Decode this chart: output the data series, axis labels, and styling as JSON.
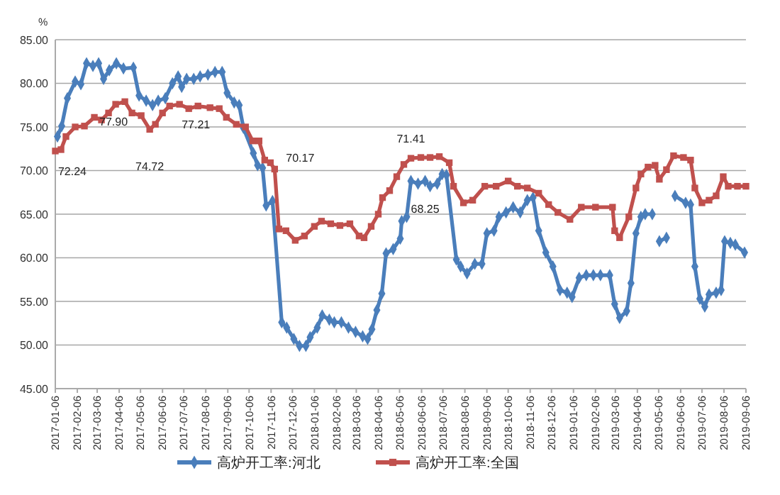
{
  "chart_data": {
    "type": "line",
    "ylabel": "%",
    "legend": "bottom",
    "grid": "y",
    "line_style": "solid",
    "ylim": [
      45,
      85
    ],
    "yticks": [
      {
        "value": 45,
        "label": "45.00"
      },
      {
        "value": 50,
        "label": "50.00"
      },
      {
        "value": 55,
        "label": "55.00"
      },
      {
        "value": 60,
        "label": "60.00"
      },
      {
        "value": 65,
        "label": "65.00"
      },
      {
        "value": 70,
        "label": "70.00"
      },
      {
        "value": 75,
        "label": "75.00"
      },
      {
        "value": 80,
        "label": "80.00"
      },
      {
        "value": 85,
        "label": "85.00"
      }
    ],
    "xlim": [
      "2017-01-06",
      "2019-09-06"
    ],
    "xticks": [
      "2017-01-06",
      "2017-02-06",
      "2017-03-06",
      "2017-04-06",
      "2017-05-06",
      "2017-06-06",
      "2017-07-06",
      "2017-08-06",
      "2017-09-06",
      "2017-10-06",
      "2017-11-06",
      "2017-12-06",
      "2018-01-06",
      "2018-02-06",
      "2018-03-06",
      "2018-04-06",
      "2018-05-06",
      "2018-06-06",
      "2018-07-06",
      "2018-08-06",
      "2018-09-06",
      "2018-10-06",
      "2018-11-06",
      "2018-12-06",
      "2019-01-06",
      "2019-02-06",
      "2019-03-06",
      "2019-04-06",
      "2019-05-06",
      "2019-06-06",
      "2019-07-06",
      "2019-08-06",
      "2019-09-06"
    ],
    "series": [
      {
        "name": "高炉开工率:河北",
        "color": "#4a7ebb",
        "marker": "diamond",
        "x": [
          "2017-01-09",
          "2017-01-15",
          "2017-01-23",
          "2017-02-03",
          "2017-02-11",
          "2017-02-19",
          "2017-02-28",
          "2017-03-08",
          "2017-03-15",
          "2017-03-23",
          "2017-04-02",
          "2017-04-12",
          "2017-04-26",
          "2017-05-04",
          "2017-05-14",
          "2017-05-23",
          "2017-05-31",
          "2017-06-10",
          "2017-06-20",
          "2017-06-28",
          "2017-07-03",
          "2017-07-10",
          "2017-07-20",
          "2017-07-29",
          "2017-08-09",
          "2017-08-19",
          "2017-08-29",
          "2017-09-05",
          "2017-09-15",
          "2017-09-22",
          "2017-09-28",
          "2017-10-12",
          "2017-10-18",
          "2017-10-25",
          "2017-10-30",
          "2017-11-08",
          "2017-11-21",
          "2017-11-28",
          "2017-12-08",
          "2017-12-16",
          "2017-12-25",
          "2017-12-31",
          "2018-01-10",
          "2018-01-17",
          "2018-01-27",
          "2018-02-03",
          "2018-02-13",
          "2018-02-23",
          "2018-03-05",
          "2018-03-15",
          "2018-03-22",
          "2018-03-28",
          "2018-04-04",
          "2018-04-11",
          "2018-04-17",
          "2018-04-27",
          "2018-05-07",
          "2018-05-09",
          "2018-05-16",
          "2018-05-22",
          "2018-06-01",
          "2018-06-11",
          "2018-06-18",
          "2018-06-28",
          "2018-07-05",
          "2018-07-11",
          "2018-07-25",
          "2018-07-31",
          "2018-08-09",
          "2018-08-20",
          "2018-08-30",
          "2018-09-06",
          "2018-09-16",
          "2018-09-23",
          "2018-10-03",
          "2018-10-13",
          "2018-10-23",
          "2018-11-02",
          "2018-11-10",
          "2018-11-18",
          "2018-11-28",
          "2018-12-08",
          "2018-12-18",
          "2018-12-28",
          "2019-01-04",
          "2019-01-14",
          "2019-01-24",
          "2019-02-03",
          "2019-02-13",
          "2019-02-26",
          "2019-03-05",
          "2019-03-12",
          "2019-03-22",
          "2019-03-28",
          "2019-04-04",
          "2019-04-11",
          "2019-04-17",
          "2019-04-27",
          "2019-05-02",
          "2019-05-07",
          "2019-05-17",
          "2019-05-23",
          "2019-05-29",
          "2019-06-13",
          "2019-06-20",
          "2019-06-26",
          "2019-07-03",
          "2019-07-10",
          "2019-07-16",
          "2019-07-26",
          "2019-08-02",
          "2019-08-07",
          "2019-08-15",
          "2019-08-22",
          "2019-09-04"
        ],
        "values": [
          73.9,
          75.1,
          78.3,
          80.2,
          79.9,
          82.3,
          82.0,
          82.3,
          80.5,
          81.5,
          82.3,
          81.7,
          81.8,
          78.6,
          78.0,
          77.5,
          78.0,
          78.3,
          80.0,
          80.8,
          79.6,
          80.5,
          80.5,
          80.8,
          81.0,
          81.3,
          81.3,
          78.9,
          77.8,
          77.5,
          74.9,
          72.0,
          70.6,
          70.3,
          66.0,
          66.5,
          52.6,
          52.0,
          50.7,
          49.9,
          49.9,
          50.9,
          52.0,
          53.4,
          52.9,
          52.6,
          52.6,
          52.0,
          51.5,
          51.0,
          50.7,
          51.8,
          54.0,
          55.9,
          60.5,
          61.0,
          62.2,
          64.2,
          64.7,
          68.8,
          68.5,
          68.8,
          68.2,
          68.5,
          69.6,
          69.5,
          59.8,
          59.0,
          58.2,
          59.3,
          59.3,
          62.8,
          63.1,
          64.7,
          65.2,
          65.8,
          65.2,
          66.6,
          66.9,
          63.1,
          60.6,
          59.0,
          56.3,
          56.0,
          55.5,
          57.7,
          58.0,
          58.0,
          58.0,
          58.0,
          54.7,
          53.1,
          53.9,
          57.1,
          62.8,
          64.7,
          65.0,
          65.0,
          null,
          61.9,
          62.3,
          null,
          67.1,
          66.3,
          66.1,
          59.0,
          55.3,
          54.4,
          55.8,
          56.0,
          56.3,
          61.9,
          61.7,
          61.5,
          60.6
        ]
      },
      {
        "name": "高炉开工率:全国",
        "color": "#c0504d",
        "marker": "square",
        "x": [
          "2017-01-06",
          "2017-01-14",
          "2017-01-21",
          "2017-02-03",
          "2017-02-16",
          "2017-03-02",
          "2017-03-12",
          "2017-03-22",
          "2017-04-01",
          "2017-04-14",
          "2017-04-24",
          "2017-05-07",
          "2017-05-19",
          "2017-05-27",
          "2017-06-06",
          "2017-06-16",
          "2017-06-30",
          "2017-07-13",
          "2017-07-26",
          "2017-08-12",
          "2017-08-25",
          "2017-09-04",
          "2017-09-18",
          "2017-10-01",
          "2017-10-11",
          "2017-10-20",
          "2017-10-28",
          "2017-11-05",
          "2017-11-11",
          "2017-11-17",
          "2017-11-27",
          "2017-12-10",
          "2017-12-23",
          "2018-01-06",
          "2018-01-16",
          "2018-01-29",
          "2018-02-11",
          "2018-02-25",
          "2018-03-10",
          "2018-03-17",
          "2018-03-27",
          "2018-04-06",
          "2018-04-12",
          "2018-04-22",
          "2018-05-02",
          "2018-05-12",
          "2018-05-22",
          "2018-06-05",
          "2018-06-18",
          "2018-07-01",
          "2018-07-15",
          "2018-07-21",
          "2018-08-04",
          "2018-08-17",
          "2018-09-03",
          "2018-09-19",
          "2018-10-06",
          "2018-10-19",
          "2018-11-02",
          "2018-11-18",
          "2018-12-02",
          "2018-12-15",
          "2019-01-01",
          "2019-01-17",
          "2019-02-06",
          "2019-03-02",
          "2019-03-05",
          "2019-03-12",
          "2019-03-25",
          "2019-04-04",
          "2019-04-11",
          "2019-04-21",
          "2019-05-01",
          "2019-05-07",
          "2019-05-17",
          "2019-05-27",
          "2019-06-10",
          "2019-06-20",
          "2019-06-26",
          "2019-07-06",
          "2019-07-16",
          "2019-07-26",
          "2019-08-05",
          "2019-08-12",
          "2019-08-25",
          "2019-09-06"
        ],
        "values": [
          72.24,
          72.4,
          73.9,
          75.0,
          75.1,
          76.1,
          75.8,
          76.6,
          77.6,
          77.9,
          76.6,
          76.3,
          74.72,
          75.3,
          76.6,
          77.4,
          77.6,
          77.1,
          77.4,
          77.21,
          77.1,
          76.1,
          75.3,
          75.0,
          73.4,
          73.4,
          71.2,
          70.9,
          70.17,
          63.3,
          63.1,
          62.0,
          62.5,
          63.6,
          64.2,
          63.9,
          63.7,
          63.9,
          62.5,
          62.3,
          63.6,
          65.0,
          66.9,
          67.7,
          69.3,
          70.7,
          71.41,
          71.5,
          71.5,
          71.6,
          70.9,
          68.2,
          66.3,
          66.6,
          68.2,
          68.2,
          68.8,
          68.2,
          68.0,
          67.4,
          66.1,
          65.2,
          64.4,
          65.8,
          65.8,
          65.8,
          63.1,
          62.3,
          64.7,
          68.0,
          69.6,
          70.4,
          70.6,
          69.0,
          70.1,
          71.7,
          71.5,
          71.2,
          68.0,
          66.3,
          66.6,
          67.1,
          69.3,
          68.2,
          68.2,
          68.2
        ]
      }
    ],
    "annotations": [
      {
        "text": "72.24",
        "x": "2017-01-06",
        "y": 72.24
      },
      {
        "text": "77.90",
        "x": "2017-04-14",
        "y": 77.9
      },
      {
        "text": "74.72",
        "x": "2017-05-19",
        "y": 74.72
      },
      {
        "text": "77.21",
        "x": "2017-08-12",
        "y": 77.21
      },
      {
        "text": "70.17",
        "x": "2017-11-11",
        "y": 70.17
      },
      {
        "text": "71.41",
        "x": "2018-05-22",
        "y": 71.41
      },
      {
        "text": "68.25",
        "x": "2018-06-11",
        "y": 68.25
      }
    ]
  }
}
